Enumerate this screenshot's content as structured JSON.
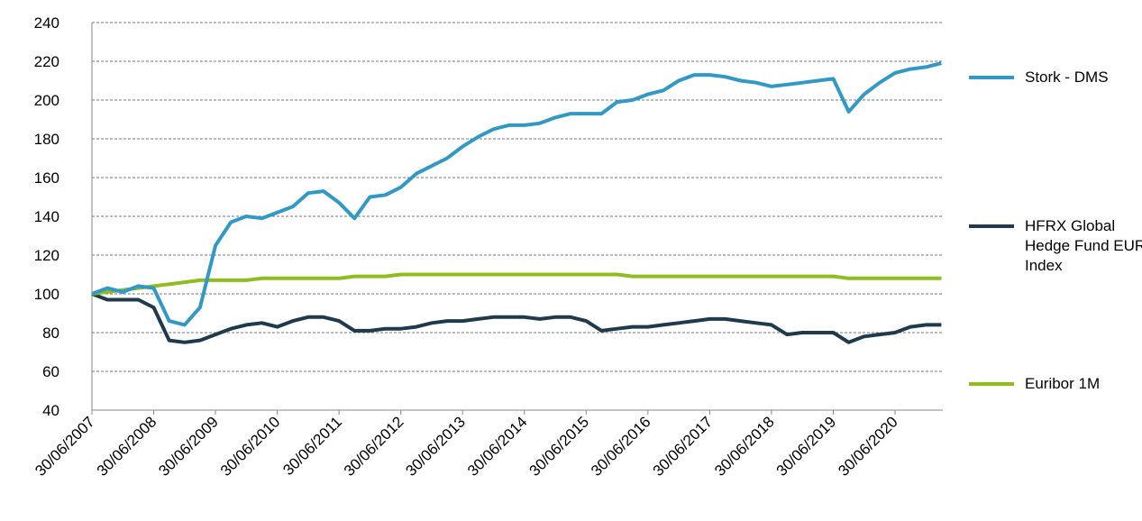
{
  "chart_data": {
    "type": "line",
    "categories": [
      "30/06/2007",
      null,
      null,
      null,
      "30/06/2008",
      null,
      null,
      null,
      "30/06/2009",
      null,
      null,
      null,
      "30/06/2010",
      null,
      null,
      null,
      "30/06/2011",
      null,
      null,
      null,
      "30/06/2012",
      null,
      null,
      null,
      "30/06/2013",
      null,
      null,
      null,
      "30/06/2014",
      null,
      null,
      null,
      "30/06/2015",
      null,
      null,
      null,
      "30/06/2016",
      null,
      null,
      null,
      "30/06/2017",
      null,
      null,
      null,
      "30/06/2018",
      null,
      null,
      null,
      "30/06/2019",
      null,
      null,
      null,
      "30/06/2020",
      null,
      null,
      null
    ],
    "series": [
      {
        "name": "Stork - DMS",
        "color": "#3199c6",
        "values": [
          100,
          103,
          101,
          104,
          103,
          86,
          84,
          93,
          125,
          137,
          140,
          139,
          142,
          145,
          152,
          153,
          147,
          139,
          150,
          151,
          155,
          162,
          166,
          170,
          176,
          181,
          185,
          187,
          187,
          188,
          191,
          193,
          193,
          193,
          199,
          200,
          203,
          205,
          210,
          213,
          213,
          212,
          210,
          209,
          207,
          208,
          209,
          210,
          211,
          194,
          203,
          209,
          214,
          216,
          217,
          219
        ]
      },
      {
        "name": "HFRX Global Hedge Fund EUR Index",
        "color": "#1e3a4c",
        "values": [
          100,
          97,
          97,
          97,
          93,
          76,
          75,
          76,
          79,
          82,
          84,
          85,
          83,
          86,
          88,
          88,
          86,
          81,
          81,
          82,
          82,
          83,
          85,
          86,
          86,
          87,
          88,
          88,
          88,
          87,
          88,
          88,
          86,
          81,
          82,
          83,
          83,
          84,
          85,
          86,
          87,
          87,
          86,
          85,
          84,
          79,
          80,
          80,
          80,
          75,
          78,
          79,
          80,
          83,
          84,
          84
        ]
      },
      {
        "name": "Euribor 1M",
        "color": "#8ebd1e",
        "values": [
          100,
          101,
          102,
          103,
          104,
          105,
          106,
          107,
          107,
          107,
          107,
          108,
          108,
          108,
          108,
          108,
          108,
          109,
          109,
          109,
          110,
          110,
          110,
          110,
          110,
          110,
          110,
          110,
          110,
          110,
          110,
          110,
          110,
          110,
          110,
          109,
          109,
          109,
          109,
          109,
          109,
          109,
          109,
          109,
          109,
          109,
          109,
          109,
          109,
          108,
          108,
          108,
          108,
          108,
          108,
          108
        ]
      }
    ],
    "ylim": [
      40,
      240
    ],
    "yticks": [
      40,
      60,
      80,
      100,
      120,
      140,
      160,
      180,
      200,
      220,
      240
    ],
    "grid": true
  }
}
